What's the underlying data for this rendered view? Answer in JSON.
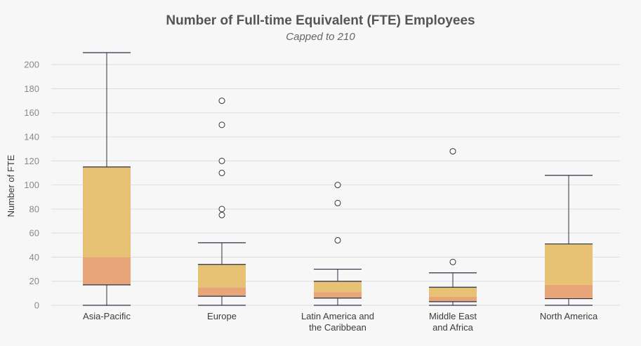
{
  "chart_data": {
    "type": "boxplot",
    "title": "Number of Full-time Equivalent (FTE) Employees",
    "subtitle": "Capped to 210",
    "ylabel": "Number of FTE",
    "xlabel": "",
    "ylim": [
      0,
      210
    ],
    "yticks": [
      0,
      20,
      40,
      60,
      80,
      100,
      120,
      140,
      160,
      180,
      200
    ],
    "grid": true,
    "colors": {
      "lower_box": "#e8a578",
      "upper_box": "#e8c274",
      "line": "#2b2f45",
      "grid": "#dddddd",
      "outlier_fill": "#ffffff"
    },
    "categories": [
      {
        "label_lines": [
          "Asia-Pacific"
        ],
        "min": 0,
        "q1": 17,
        "median": 40,
        "q3": 115,
        "max": 210,
        "outliers": []
      },
      {
        "label_lines": [
          "Europe"
        ],
        "min": 0,
        "q1": 7.5,
        "median": 15,
        "q3": 34,
        "max": 52,
        "outliers": [
          75,
          80,
          110,
          120,
          150,
          170
        ]
      },
      {
        "label_lines": [
          "Latin America and",
          "the Caribbean"
        ],
        "min": 0,
        "q1": 6,
        "median": 11,
        "q3": 20,
        "max": 30,
        "outliers": [
          54,
          85,
          100
        ]
      },
      {
        "label_lines": [
          "Middle East",
          "and Africa"
        ],
        "min": 0,
        "q1": 3,
        "median": 7,
        "q3": 15,
        "max": 27,
        "outliers": [
          36,
          128
        ]
      },
      {
        "label_lines": [
          "North America"
        ],
        "min": 0,
        "q1": 5.5,
        "median": 17,
        "q3": 51,
        "max": 108,
        "outliers": []
      }
    ]
  }
}
